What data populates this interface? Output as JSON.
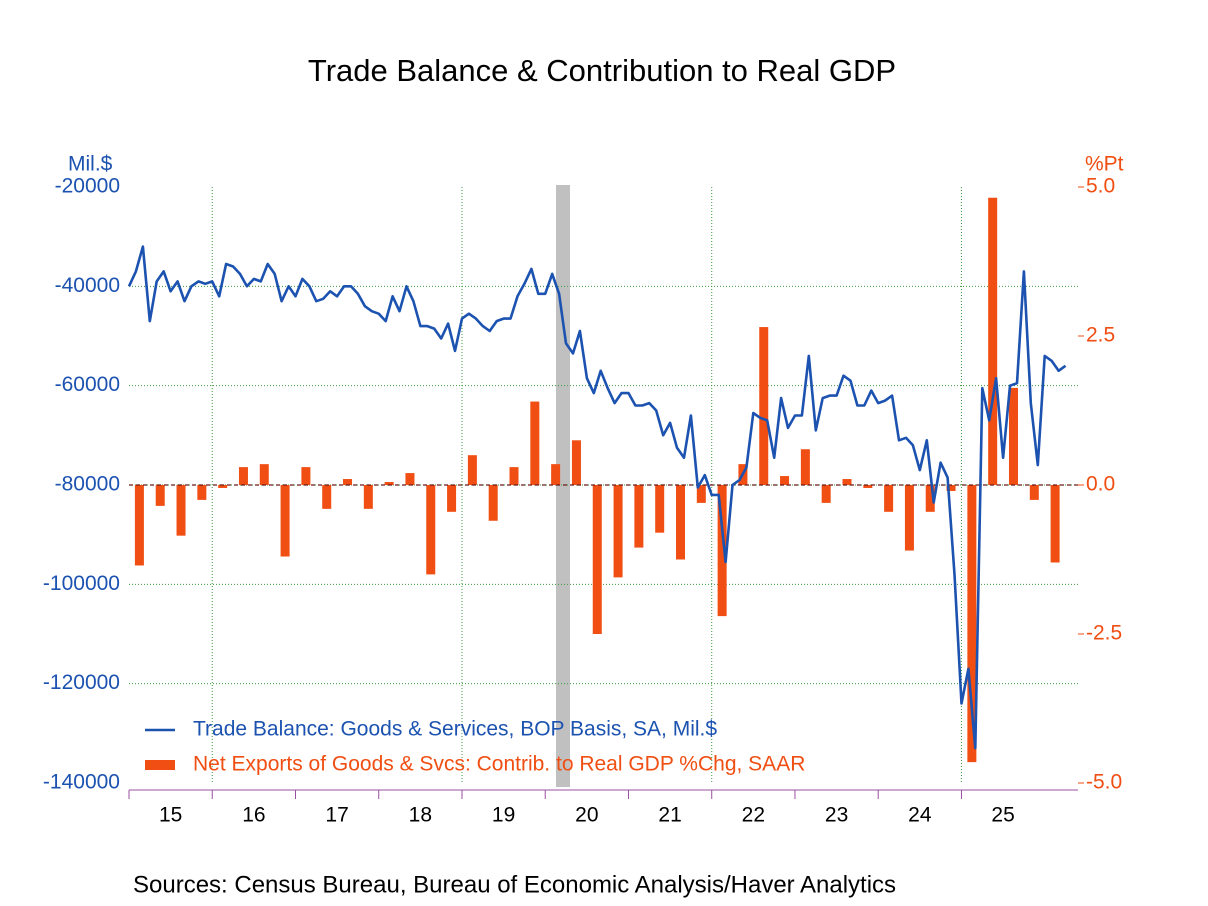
{
  "chart_data": {
    "type": "line-bar",
    "title": "Trade Balance & Contribution to Real GDP",
    "ylabel": "Mil.$",
    "y2label": "%Pt",
    "source": "Sources:  Census Bureau, Bureau of Economic Analysis/Haver Analytics",
    "xlim": [
      2015,
      2026.4
    ],
    "xticks": [
      {
        "value": 2015,
        "label": "15"
      },
      {
        "value": 2016,
        "label": "16"
      },
      {
        "value": 2017,
        "label": "17"
      },
      {
        "value": 2018,
        "label": "18"
      },
      {
        "value": 2019,
        "label": "19"
      },
      {
        "value": 2020,
        "label": "20"
      },
      {
        "value": 2021,
        "label": "21"
      },
      {
        "value": 2022,
        "label": "22"
      },
      {
        "value": 2023,
        "label": "23"
      },
      {
        "value": 2024,
        "label": "24"
      },
      {
        "value": 2025,
        "label": "25"
      }
    ],
    "ylim": [
      -140000,
      -20000
    ],
    "yticks": [
      -20000,
      -40000,
      -60000,
      -80000,
      -100000,
      -120000,
      -140000
    ],
    "y2lim": [
      -5,
      5
    ],
    "y2ticks": [
      {
        "value": 5,
        "label": "5.0"
      },
      {
        "value": 2.5,
        "label": "2.5"
      },
      {
        "value": 0,
        "label": "0.0"
      },
      {
        "value": -2.5,
        "label": "-2.5"
      },
      {
        "value": -5,
        "label": "-5.0"
      }
    ],
    "grid": true,
    "series": [
      {
        "name": "Trade Balance: Goods & Services, BOP Basis, SA, Mil.$",
        "type": "line",
        "color": "#1c52b0",
        "frequency": 12,
        "values": [
          -40000,
          -37000,
          -32000,
          -47000,
          -39000,
          -37000,
          -41000,
          -39000,
          -43000,
          -40000,
          -39000,
          -39500,
          -39000,
          -42000,
          -35500,
          -36000,
          -37500,
          -40000,
          -38500,
          -39000,
          -35500,
          -37500,
          -43000,
          -40000,
          -42000,
          -38500,
          -40000,
          -43000,
          -42500,
          -41000,
          -42000,
          -40000,
          -40000,
          -41500,
          -44000,
          -45000,
          -45500,
          -47000,
          -42000,
          -45000,
          -40000,
          -43000,
          -48000,
          -48000,
          -48500,
          -50500,
          -47500,
          -53000,
          -46500,
          -45500,
          -46500,
          -48000,
          -49000,
          -47000,
          -46500,
          -46500,
          -42000,
          -39500,
          -36500,
          -41500,
          -41500,
          -37500,
          -41500,
          -51500,
          -53500,
          -49000,
          -58500,
          -61500,
          -57000,
          -60500,
          -63500,
          -61500,
          -61500,
          -64000,
          -64000,
          -63500,
          -65000,
          -70000,
          -67500,
          -72500,
          -74500,
          -66000,
          -80500,
          -78000,
          -82000,
          -82000,
          -95500,
          -80000,
          -79000,
          -76500,
          -65500,
          -66500,
          -67000,
          -74500,
          -62500,
          -68500,
          -66000,
          -66000,
          -54000,
          -69000,
          -62500,
          -62000,
          -62000,
          -58000,
          -59000,
          -64000,
          -64000,
          -61000,
          -63500,
          -63000,
          -62000,
          -71000,
          -70500,
          -72000,
          -77000,
          -71000,
          -83500,
          -75500,
          -78500,
          -98000,
          -124000,
          -117000,
          -133000,
          -60500,
          -67000,
          -58500,
          -74500,
          -60000,
          -59500,
          -37000,
          -63500,
          -76000,
          -54000,
          -55000,
          -57000,
          -56000
        ]
      },
      {
        "name": "Net Exports of Goods & Svcs: Contrib. to Real GDP %Chg, SAAR",
        "type": "bar",
        "axis": "y2",
        "color": "#f04e12",
        "frequency": 4,
        "values": [
          -1.35,
          -0.35,
          -0.85,
          -0.25,
          -0.05,
          0.3,
          0.35,
          -1.2,
          0.3,
          -0.4,
          0.1,
          -0.4,
          0.05,
          0.2,
          -1.5,
          -0.45,
          0.5,
          -0.6,
          0.3,
          1.4,
          0.35,
          0.75,
          -2.5,
          -1.55,
          -1.05,
          -0.8,
          -1.25,
          -0.3,
          -2.2,
          0.35,
          2.65,
          0.15,
          0.6,
          -0.3,
          0.1,
          -0.05,
          -0.45,
          -1.1,
          -0.45,
          -0.1,
          -4.65,
          4.82,
          1.63,
          -0.25,
          -1.3
        ]
      }
    ]
  }
}
